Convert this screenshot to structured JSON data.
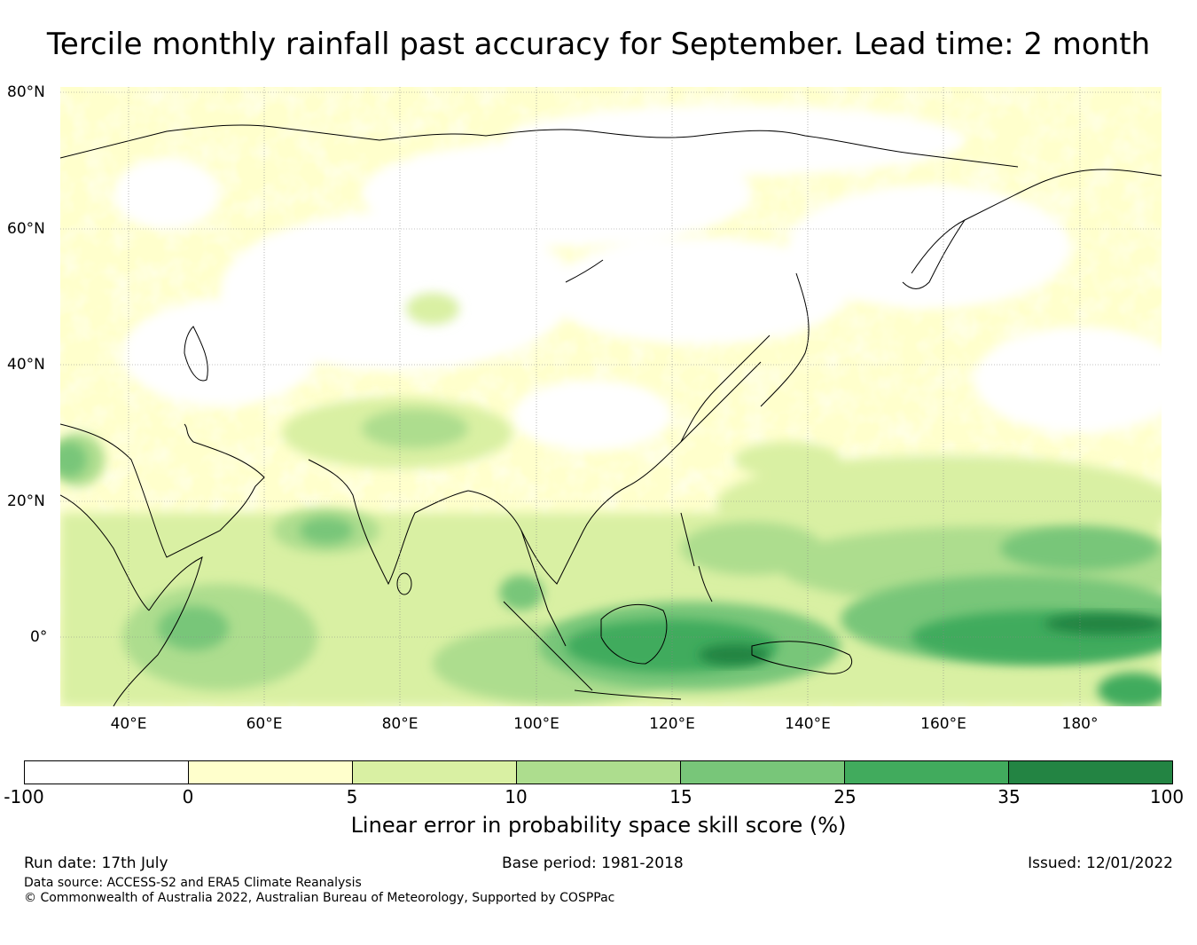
{
  "title": "Tercile monthly rainfall past accuracy for September. Lead time: 2 month",
  "map": {
    "lat_labels": [
      "80°N",
      "60°N",
      "40°N",
      "20°N",
      "0°"
    ],
    "lon_labels": [
      "40°E",
      "60°E",
      "80°E",
      "100°E",
      "120°E",
      "140°E",
      "160°E",
      "180°"
    ]
  },
  "colorbar": {
    "ticks": [
      "-100",
      "0",
      "5",
      "10",
      "15",
      "25",
      "35",
      "100"
    ],
    "colors": [
      "#ffffff",
      "#ffffcc",
      "#d9f0a3",
      "#addd8e",
      "#78c679",
      "#41ab5d",
      "#238443"
    ],
    "label": "Linear error in probability space skill score (%)"
  },
  "footer": {
    "run_date": "Run date: 17th July",
    "base_period": "Base period: 1981-2018",
    "issued": "Issued: 12/01/2022",
    "data_source": "Data source: ACCESS-S2 and ERA5 Climate Reanalysis",
    "copyright": "© Commonwealth of Australia 2022, Australian Bureau of Meteorology, Supported by COSPPac"
  }
}
